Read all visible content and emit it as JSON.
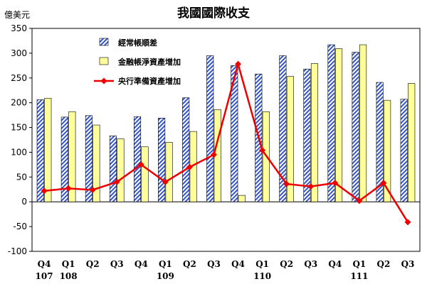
{
  "chart_data": {
    "type": "bar",
    "title": "我國國際收支",
    "ylabel": "億美元",
    "ylim": [
      -100,
      350
    ],
    "yticks": [
      -100,
      -50,
      0,
      50,
      100,
      150,
      200,
      250,
      300,
      350
    ],
    "categories": [
      "Q4",
      "Q1",
      "Q2",
      "Q3",
      "Q4",
      "Q1",
      "Q2",
      "Q3",
      "Q4",
      "Q1",
      "Q2",
      "Q3",
      "Q4",
      "Q1",
      "Q2",
      "Q3"
    ],
    "year_labels": [
      {
        "index": 0,
        "label": "107"
      },
      {
        "index": 1,
        "label": "108"
      },
      {
        "index": 5,
        "label": "109"
      },
      {
        "index": 9,
        "label": "110"
      },
      {
        "index": 13,
        "label": "111"
      }
    ],
    "series": [
      {
        "name": "經常帳順差",
        "type": "bar",
        "pattern": "hatched",
        "color": "#3355cc",
        "values": [
          206,
          171,
          174,
          133,
          172,
          169,
          210,
          295,
          275,
          258,
          295,
          268,
          317,
          302,
          241,
          207
        ]
      },
      {
        "name": "金融帳淨資產增加",
        "type": "bar",
        "color": "#ffff99",
        "values": [
          209,
          182,
          155,
          127,
          111,
          120,
          142,
          186,
          13,
          182,
          253,
          279,
          309,
          317,
          205,
          239
        ]
      },
      {
        "name": "央行準備資產增加",
        "type": "line",
        "marker": "diamond",
        "color": "#ee0000",
        "values": [
          22,
          27,
          24,
          40,
          75,
          40,
          70,
          95,
          278,
          104,
          36,
          31,
          38,
          2,
          38,
          -41
        ]
      }
    ],
    "grid": false,
    "legend_position": "top-right"
  },
  "colors": {
    "bar_outline": "#000000",
    "axis": "#000000",
    "line": "#ee0000"
  }
}
